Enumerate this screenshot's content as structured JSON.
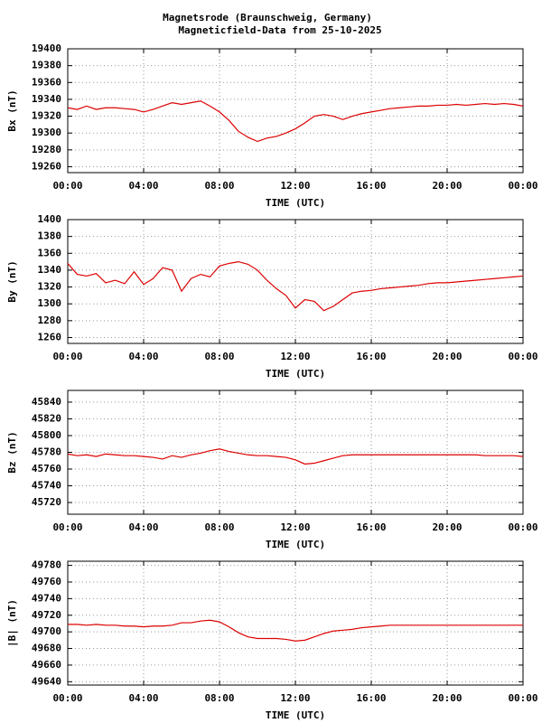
{
  "header": {
    "title": "Magnetsrode (Braunschweig, Germany)",
    "subtitle": "Magneticfield-Data from 25-10-2025"
  },
  "chart_data": [
    {
      "type": "line",
      "ylabel": "Bx (nT)",
      "xlabel": "TIME (UTC)",
      "color": "#dd0000",
      "grid": true,
      "x": [
        0,
        0.5,
        1,
        1.5,
        2,
        2.5,
        3,
        3.5,
        4,
        4.5,
        5,
        5.5,
        6,
        6.5,
        7,
        7.5,
        8,
        8.5,
        9,
        9.5,
        10,
        10.5,
        11,
        11.5,
        12,
        12.5,
        13,
        13.5,
        14,
        14.5,
        15,
        15.5,
        16,
        16.5,
        17,
        17.5,
        18,
        18.5,
        19,
        19.5,
        20,
        20.5,
        21,
        21.5,
        22,
        22.5,
        23,
        23.5,
        24
      ],
      "values": [
        19330,
        19328,
        19332,
        19328,
        19330,
        19330,
        19329,
        19328,
        19325,
        19328,
        19332,
        19336,
        19334,
        19336,
        19338,
        19332,
        19325,
        19315,
        19302,
        19295,
        19290,
        19294,
        19296,
        19300,
        19305,
        19312,
        19320,
        19322,
        19320,
        19316,
        19320,
        19323,
        19325,
        19327,
        19329,
        19330,
        19331,
        19332,
        19332,
        19333,
        19333,
        19334,
        19333,
        19334,
        19335,
        19334,
        19335,
        19334,
        19332
      ],
      "xlim": [
        0,
        24
      ],
      "xticks": [
        {
          "value": 0,
          "label": "00:00"
        },
        {
          "value": 4,
          "label": "04:00"
        },
        {
          "value": 8,
          "label": "08:00"
        },
        {
          "value": 12,
          "label": "12:00"
        },
        {
          "value": 16,
          "label": "16:00"
        },
        {
          "value": 20,
          "label": "20:00"
        },
        {
          "value": 24,
          "label": "00:00"
        }
      ],
      "ylim": [
        19253,
        19400
      ],
      "yticks": [
        19260,
        19280,
        19300,
        19320,
        19340,
        19360,
        19380,
        19400
      ]
    },
    {
      "type": "line",
      "ylabel": "By (nT)",
      "xlabel": "TIME (UTC)",
      "color": "#dd0000",
      "grid": true,
      "x": [
        0,
        0.5,
        1,
        1.5,
        2,
        2.5,
        3,
        3.5,
        4,
        4.5,
        5,
        5.5,
        6,
        6.5,
        7,
        7.5,
        8,
        8.5,
        9,
        9.5,
        10,
        10.5,
        11,
        11.5,
        12,
        12.5,
        13,
        13.5,
        14,
        14.5,
        15,
        15.5,
        16,
        16.5,
        17,
        17.5,
        18,
        18.5,
        19,
        19.5,
        20,
        20.5,
        21,
        21.5,
        22,
        22.5,
        23,
        23.5,
        24
      ],
      "values": [
        1348,
        1335,
        1333,
        1336,
        1325,
        1328,
        1324,
        1338,
        1323,
        1330,
        1343,
        1340,
        1315,
        1330,
        1335,
        1332,
        1345,
        1348,
        1350,
        1347,
        1340,
        1328,
        1318,
        1310,
        1295,
        1305,
        1303,
        1292,
        1297,
        1305,
        1313,
        1315,
        1316,
        1318,
        1319,
        1320,
        1321,
        1322,
        1324,
        1325,
        1325,
        1326,
        1327,
        1328,
        1329,
        1330,
        1331,
        1332,
        1333
      ],
      "xlim": [
        0,
        24
      ],
      "xticks": [
        {
          "value": 0,
          "label": "00:00"
        },
        {
          "value": 4,
          "label": "04:00"
        },
        {
          "value": 8,
          "label": "08:00"
        },
        {
          "value": 12,
          "label": "12:00"
        },
        {
          "value": 16,
          "label": "16:00"
        },
        {
          "value": 20,
          "label": "20:00"
        },
        {
          "value": 24,
          "label": "00:00"
        }
      ],
      "ylim": [
        1253,
        1400
      ],
      "yticks": [
        1260,
        1280,
        1300,
        1320,
        1340,
        1360,
        1380,
        1400
      ]
    },
    {
      "type": "line",
      "ylabel": "Bz (nT)",
      "xlabel": "TIME (UTC)",
      "color": "#dd0000",
      "grid": true,
      "x": [
        0,
        0.5,
        1,
        1.5,
        2,
        2.5,
        3,
        3.5,
        4,
        4.5,
        5,
        5.5,
        6,
        6.5,
        7,
        7.5,
        8,
        8.5,
        9,
        9.5,
        10,
        10.5,
        11,
        11.5,
        12,
        12.5,
        13,
        13.5,
        14,
        14.5,
        15,
        15.5,
        16,
        16.5,
        17,
        17.5,
        18,
        18.5,
        19,
        19.5,
        20,
        20.5,
        21,
        21.5,
        22,
        22.5,
        23,
        23.5,
        24
      ],
      "values": [
        45778,
        45776,
        45777,
        45775,
        45778,
        45777,
        45776,
        45776,
        45775,
        45774,
        45772,
        45776,
        45774,
        45777,
        45779,
        45782,
        45784,
        45781,
        45779,
        45777,
        45776,
        45776,
        45775,
        45774,
        45771,
        45766,
        45767,
        45770,
        45773,
        45776,
        45777,
        45777,
        45777,
        45777,
        45777,
        45777,
        45777,
        45777,
        45777,
        45777,
        45777,
        45777,
        45777,
        45777,
        45776,
        45776,
        45776,
        45776,
        45775
      ],
      "xlim": [
        0,
        24
      ],
      "xticks": [
        {
          "value": 0,
          "label": "00:00"
        },
        {
          "value": 4,
          "label": "04:00"
        },
        {
          "value": 8,
          "label": "08:00"
        },
        {
          "value": 12,
          "label": "12:00"
        },
        {
          "value": 16,
          "label": "16:00"
        },
        {
          "value": 20,
          "label": "20:00"
        },
        {
          "value": 24,
          "label": "00:00"
        }
      ],
      "ylim": [
        45706,
        45854
      ],
      "yticks": [
        45720,
        45740,
        45760,
        45780,
        45800,
        45820,
        45840
      ]
    },
    {
      "type": "line",
      "ylabel": "|B| (nT)",
      "xlabel": "TIME (UTC)",
      "color": "#dd0000",
      "grid": true,
      "x": [
        0,
        0.5,
        1,
        1.5,
        2,
        2.5,
        3,
        3.5,
        4,
        4.5,
        5,
        5.5,
        6,
        6.5,
        7,
        7.5,
        8,
        8.5,
        9,
        9.5,
        10,
        10.5,
        11,
        11.5,
        12,
        12.5,
        13,
        13.5,
        14,
        14.5,
        15,
        15.5,
        16,
        16.5,
        17,
        17.5,
        18,
        18.5,
        19,
        19.5,
        20,
        20.5,
        21,
        21.5,
        22,
        22.5,
        23,
        23.5,
        24
      ],
      "values": [
        49709,
        49709,
        49708,
        49709,
        49708,
        49708,
        49707,
        49707,
        49706,
        49707,
        49707,
        49708,
        49711,
        49711,
        49713,
        49714,
        49712,
        49706,
        49699,
        49694,
        49692,
        49692,
        49692,
        49691,
        49689,
        49690,
        49694,
        49698,
        49701,
        49702,
        49703,
        49705,
        49706,
        49707,
        49708,
        49708,
        49708,
        49708,
        49708,
        49708,
        49708,
        49708,
        49708,
        49708,
        49708,
        49708,
        49708,
        49708,
        49708
      ],
      "xlim": [
        0,
        24
      ],
      "xticks": [
        {
          "value": 0,
          "label": "00:00"
        },
        {
          "value": 4,
          "label": "04:00"
        },
        {
          "value": 8,
          "label": "08:00"
        },
        {
          "value": 12,
          "label": "12:00"
        },
        {
          "value": 16,
          "label": "16:00"
        },
        {
          "value": 20,
          "label": "20:00"
        },
        {
          "value": 24,
          "label": "00:00"
        }
      ],
      "ylim": [
        49636,
        49785
      ],
      "yticks": [
        49640,
        49660,
        49680,
        49700,
        49720,
        49740,
        49760,
        49780
      ]
    }
  ]
}
